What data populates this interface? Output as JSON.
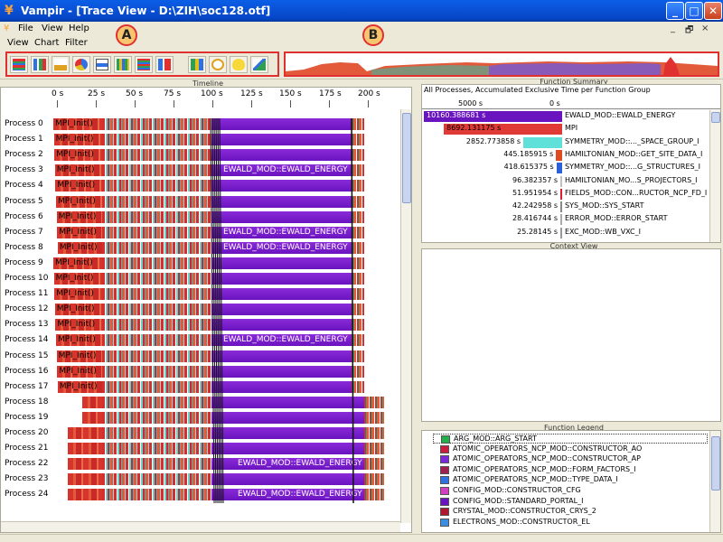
{
  "window": {
    "title": "Vampir - [Trace View - D:\\ZIH\\soc128.otf]",
    "min_glyph": "_",
    "max_glyph": "□",
    "close_glyph": "✕"
  },
  "menu": {
    "file": "File",
    "view": "View",
    "help": "Help",
    "mdi_min": "_",
    "mdi_restore": "🗗",
    "mdi_close": "×"
  },
  "submenu": {
    "view": "View",
    "chart": "Chart",
    "filter": "Filter"
  },
  "callouts": {
    "a": "A",
    "b": "B"
  },
  "toolbar": {
    "icons": [
      "master-timeline-icon",
      "process-timeline-icon",
      "counter-timeline-icon",
      "function-summary-icon",
      "message-summary-icon",
      "communication-matrix-icon",
      "process-summary-icon",
      "call-tree-icon",
      "statistics-icon",
      "clock-icon",
      "idea-icon",
      "edit-icon"
    ]
  },
  "timeline": {
    "caption": "Timeline",
    "ticks": [
      "0 s",
      "25 s",
      "50 s",
      "75 s",
      "100 s",
      "125 s",
      "150 s",
      "175 s",
      "200 s"
    ],
    "ewald_label": "EWALD_MOD::EWALD_ENERGY",
    "mpi_label": "MPI_Init()",
    "processes": [
      {
        "name": "Process 0",
        "mpi": "MPI_Init()",
        "ewald": ""
      },
      {
        "name": "Process 1",
        "mpi": "MPI_Init()",
        "ewald": ""
      },
      {
        "name": "Process 2",
        "mpi": "MPI_Init()",
        "ewald": ""
      },
      {
        "name": "Process 3",
        "mpi": "MPI_Init()",
        "ewald": "EWALD_MOD::EWALD_ENERGY"
      },
      {
        "name": "Process 4",
        "mpi": "MPI_Init()",
        "ewald": ""
      },
      {
        "name": "Process 5",
        "mpi": "MPI_Init()",
        "ewald": ""
      },
      {
        "name": "Process 6",
        "mpi": "MPI_Init()",
        "ewald": ""
      },
      {
        "name": "Process 7",
        "mpi": "MPI_Init()",
        "ewald": "EWALD_MOD::EWALD_ENERGY"
      },
      {
        "name": "Process 8",
        "mpi": "MPI_Init()",
        "ewald": "EWALD_MOD::EWALD_ENERGY"
      },
      {
        "name": "Process 9",
        "mpi": "MPI_Init()",
        "ewald": ""
      },
      {
        "name": "Process 10",
        "mpi": "MPI_Init()",
        "ewald": ""
      },
      {
        "name": "Process 11",
        "mpi": "MPI_Init()",
        "ewald": ""
      },
      {
        "name": "Process 12",
        "mpi": "MPI_Init()",
        "ewald": ""
      },
      {
        "name": "Process 13",
        "mpi": "MPI_Init()",
        "ewald": ""
      },
      {
        "name": "Process 14",
        "mpi": "MPI_Init()",
        "ewald": "EWALD_MOD::EWALD_ENERGY"
      },
      {
        "name": "Process 15",
        "mpi": "MPI_Init()",
        "ewald": ""
      },
      {
        "name": "Process 16",
        "mpi": "MPI_Init()",
        "ewald": ""
      },
      {
        "name": "Process 17",
        "mpi": "MPI_Init()",
        "ewald": ""
      },
      {
        "name": "Process 18",
        "mpi": "",
        "ewald": ""
      },
      {
        "name": "Process 19",
        "mpi": "",
        "ewald": ""
      },
      {
        "name": "Process 20",
        "mpi": "",
        "ewald": ""
      },
      {
        "name": "Process 21",
        "mpi": "",
        "ewald": ""
      },
      {
        "name": "Process 22",
        "mpi": "",
        "ewald": "EWALD_MOD::EWALD_ENERGY"
      },
      {
        "name": "Process 23",
        "mpi": "",
        "ewald": ""
      },
      {
        "name": "Process 24",
        "mpi": "",
        "ewald": "EWALD_MOD::EWALD_ENERGY"
      }
    ]
  },
  "summary": {
    "caption": "Function Summary",
    "subtitle": "All Processes, Accumulated Exclusive Time per Function Group",
    "axis_ticks": [
      "5000 s",
      "0 s"
    ],
    "rows": [
      {
        "value": "10160.388681 s",
        "name": "EWALD_MOD::EWALD_ENERGY",
        "seconds": 10160.388681,
        "color": "#6a14c0"
      },
      {
        "value": "8692.131175 s",
        "name": "MPI",
        "seconds": 8692.131175,
        "color": "#e03a36"
      },
      {
        "value": "2852.773858 s",
        "name": "SYMMETRY_MOD::..._SPACE_GROUP_I",
        "seconds": 2852.773858,
        "color": "#5fe0d8"
      },
      {
        "value": "445.185915 s",
        "name": "HAMILTONIAN_MOD::GET_SITE_DATA_I",
        "seconds": 445.185915,
        "color": "#e04a20"
      },
      {
        "value": "418.615375 s",
        "name": "SYMMETRY_MOD::...G_STRUCTURES_I",
        "seconds": 418.615375,
        "color": "#2a60d8"
      },
      {
        "value": "96.382357 s",
        "name": "HAMILTONIAN_MO...S_PROJECTORS_I",
        "seconds": 96.382357,
        "color": "#c0c0c0"
      },
      {
        "value": "51.951954 s",
        "name": "FIELDS_MOD::CON...RUCTOR_NCP_FD_I",
        "seconds": 51.951954,
        "color": "#e01a30"
      },
      {
        "value": "42.242958 s",
        "name": "SYS_MOD::SYS_START",
        "seconds": 42.242958,
        "color": "#888888"
      },
      {
        "value": "28.416744 s",
        "name": "ERROR_MOD::ERROR_START",
        "seconds": 28.416744,
        "color": "#aaaaaa"
      },
      {
        "value": "25.28145 s",
        "name": "EXC_MOD::WB_VXC_I",
        "seconds": 25.28145,
        "color": "#999999"
      }
    ]
  },
  "context": {
    "caption": "Context View"
  },
  "legend": {
    "caption": "Function Legend",
    "items": [
      {
        "name": "ARG_MOD::ARG_START",
        "color": "#22b04a"
      },
      {
        "name": "ATOMIC_OPERATORS_NCP_MOD::CONSTRUCTOR_AO",
        "color": "#c81e40"
      },
      {
        "name": "ATOMIC_OPERATORS_NCP_MOD::CONSTRUCTOR_AP",
        "color": "#7a2ad8"
      },
      {
        "name": "ATOMIC_OPERATORS_NCP_MOD::FORM_FACTORS_I",
        "color": "#a02050"
      },
      {
        "name": "ATOMIC_OPERATORS_NCP_MOD::TYPE_DATA_I",
        "color": "#3070e0"
      },
      {
        "name": "CONFIG_MOD::CONSTRUCTOR_CFG",
        "color": "#d040c0"
      },
      {
        "name": "CONFIG_MOD::STANDARD_PORTAL_I",
        "color": "#6a14c0"
      },
      {
        "name": "CRYSTAL_MOD::CONSTRUCTOR_CRYS_2",
        "color": "#b01830"
      },
      {
        "name": "ELECTRONS_MOD::CONSTRUCTOR_EL",
        "color": "#3c8ce0"
      }
    ]
  }
}
